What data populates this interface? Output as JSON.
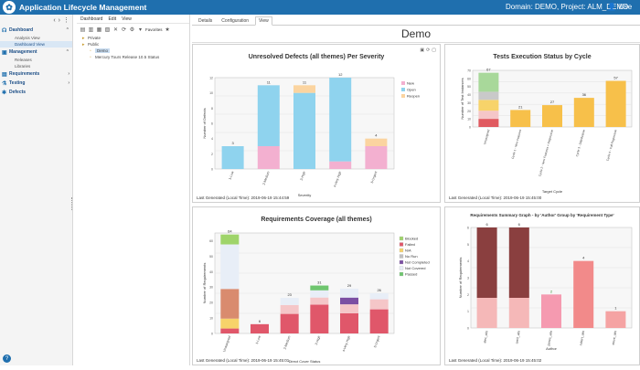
{
  "app": {
    "logo_glyph": "✿",
    "title": "Application Lifecycle Management",
    "domain_project": "Domain: DEMO, Project: ALM_DEMO",
    "user_icon": "user-icon",
    "user_label": "Use"
  },
  "sidebar": {
    "tools": [
      "‹",
      "›",
      "⋮"
    ],
    "modules": [
      {
        "icon": "☊",
        "label": "Dashboard",
        "chev": "⌃",
        "items": [
          {
            "label": "Analysis View",
            "active": false
          },
          {
            "label": "Dashboard View",
            "active": true
          }
        ]
      },
      {
        "icon": "▣",
        "label": "Management",
        "chev": "⌃",
        "items": [
          {
            "label": "Releases",
            "active": false
          },
          {
            "label": "Libraries",
            "active": false
          }
        ]
      },
      {
        "icon": "▤",
        "label": "Requirements",
        "chev": "›",
        "items": []
      },
      {
        "icon": "⚗",
        "label": "Testing",
        "chev": "›",
        "items": []
      },
      {
        "icon": "✱",
        "label": "Defects",
        "chev": "",
        "items": []
      }
    ],
    "help": "?"
  },
  "tree": {
    "menu": [
      "Dashboard",
      "Edit",
      "View"
    ],
    "tools": [
      "▤",
      "▥",
      "▦",
      "▧",
      "✕",
      "⟳",
      "⚙",
      "▾"
    ],
    "favorites_label": "Favorites",
    "nodes": [
      {
        "label": "Private",
        "indent": 0,
        "selected": false
      },
      {
        "label": "Public",
        "indent": 0,
        "selected": false
      },
      {
        "label": "Demo",
        "indent": 1,
        "selected": true
      },
      {
        "label": "Mercury Tours Release 10.5 Status",
        "indent": 1,
        "selected": false
      }
    ]
  },
  "main": {
    "tabs": [
      {
        "label": "Details",
        "active": false
      },
      {
        "label": "Configuration",
        "active": false
      },
      {
        "label": "View",
        "active": true
      }
    ],
    "dashboard_title": "Demo"
  },
  "panels": {
    "p1": {
      "title": "Unresolved Defects (all themes) Per Severity",
      "footer": "Last Generated (Local Time): 2019-06-19 15:44:59"
    },
    "p2": {
      "title": "Tests Execution Status by Cycle",
      "footer": "Last Generated (Local Time): 2019-06-19 15:45:00"
    },
    "p3": {
      "title": "Requirements Coverage (all themes)",
      "footer": "Last Generated (Local Time): 2019-06-19 15:45:01"
    },
    "p4": {
      "title": "Requirements Summary Graph - by 'Author' Group by 'Requirement Type'",
      "footer": "Last Generated (Local Time): 2019-06-19 15:45:02"
    }
  },
  "chart_data": [
    {
      "type": "bar",
      "title": "Unresolved Defects (all themes) Per Severity",
      "xlabel": "Severity",
      "ylabel": "Number of Defects",
      "categories": [
        "1-Low",
        "2-Medium",
        "3-High",
        "4-Very High",
        "5-Urgent"
      ],
      "totals": [
        3,
        11,
        11,
        12,
        4
      ],
      "ylim": [
        0,
        12
      ],
      "series": [
        {
          "name": "New",
          "color": "#f3b0d0",
          "values": [
            0,
            3,
            0,
            1,
            3
          ]
        },
        {
          "name": "Open",
          "color": "#8fd3ee",
          "values": [
            3,
            8,
            10,
            11,
            0
          ]
        },
        {
          "name": "Reopen",
          "color": "#fbd4a0",
          "values": [
            0,
            0,
            1,
            0,
            1
          ]
        }
      ],
      "legend": "right"
    },
    {
      "type": "bar",
      "title": "Tests Execution Status by Cycle",
      "xlabel": "Target Cycle",
      "ylabel": "Number of Test Instances",
      "categories": [
        "Unassigned",
        "Cycle 1 - New Features",
        "Cycle 2 - New Features + Regression",
        "Cycle 3 - Stabilization",
        "Cycle 4 - Full Regression"
      ],
      "values": [
        67,
        21,
        27,
        36,
        57
      ],
      "ylim": [
        0,
        70
      ]
    },
    {
      "type": "bar",
      "title": "Requirements Coverage (all themes)",
      "xlabel": "Direct Cover Status",
      "ylabel": "Number of Requirements",
      "categories": [
        "Unassigned",
        "1-Low",
        "2-Medium",
        "3-High",
        "4-Very High",
        "5-Urgent"
      ],
      "totals": [
        64,
        6,
        23,
        31,
        29,
        26
      ],
      "ylim": [
        0,
        65
      ],
      "legend_entries": [
        {
          "name": "Blocked",
          "color": "#9fd46a"
        },
        {
          "name": "Failed",
          "color": "#e0576a"
        },
        {
          "name": "N/A",
          "color": "#f7d36a"
        },
        {
          "name": "No Run",
          "color": "#c0c0c0"
        },
        {
          "name": "Not Completed",
          "color": "#7b4fa3"
        },
        {
          "name": "Not Covered",
          "color": "#e8eef7"
        },
        {
          "name": "Passed",
          "color": "#6ec56e"
        }
      ],
      "legend": "right"
    },
    {
      "type": "bar",
      "title": "Requirements Summary Graph - by 'Author' Group by 'Requirement Type'",
      "xlabel": "Author",
      "ylabel": "Number of Requirements",
      "categories": [
        "alex_alm",
        "cecil_alm",
        "james_alm",
        "robert_alm",
        "steve_alm"
      ],
      "values": [
        6,
        6,
        2,
        4,
        1
      ],
      "ylim": [
        0,
        6
      ]
    }
  ]
}
